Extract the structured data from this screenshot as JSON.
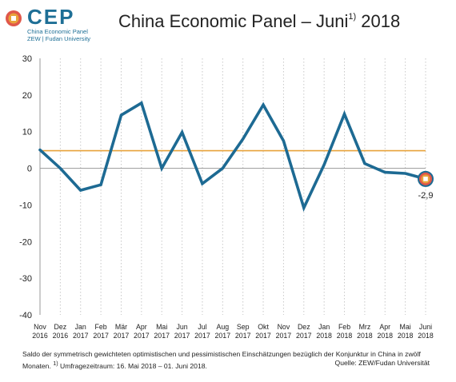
{
  "header": {
    "logo_word": "CEP",
    "logo_line1": "China Economic Panel",
    "logo_line2": "ZEW | Fudan University",
    "title_main": "China Economic Panel – Juni",
    "title_sup": "1)",
    "title_year": " 2018"
  },
  "footer": {
    "note_line1": "Saldo der symmetrisch gewichteten optimistischen und pessimistischen Einschätzungen bezüglich der Konjunktur in China in zwölf",
    "note_line2_a": "Monaten. ",
    "note_line2_sup": "1)",
    "note_line2_b": " Umfragezeitraum: 16. Mai 2018 – 01. Juni 2018.",
    "source": "Quelle: ZEW/Fudan Universität"
  },
  "colors": {
    "series": "#1d6a93",
    "mean": "#e8a23a",
    "marker_fill": "#e0574a",
    "marker_ring": "#e8a23a",
    "grid": "#c8c8c8"
  },
  "chart_data": {
    "type": "line",
    "ylim": [
      -40,
      30
    ],
    "yticks": [
      30,
      20,
      10,
      0,
      -10,
      -20,
      -30,
      -40
    ],
    "categories": [
      [
        "Nov",
        "2016"
      ],
      [
        "Dez",
        "2016"
      ],
      [
        "Jan",
        "2017"
      ],
      [
        "Feb",
        "2017"
      ],
      [
        "Mär",
        "2017"
      ],
      [
        "Apr",
        "2017"
      ],
      [
        "Mai",
        "2017"
      ],
      [
        "Jun",
        "2017"
      ],
      [
        "Jul",
        "2017"
      ],
      [
        "Aug",
        "2017"
      ],
      [
        "Sep",
        "2017"
      ],
      [
        "Okt",
        "2017"
      ],
      [
        "Nov",
        "2017"
      ],
      [
        "Dez",
        "2017"
      ],
      [
        "Jan",
        "2018"
      ],
      [
        "Feb",
        "2018"
      ],
      [
        "Mrz",
        "2018"
      ],
      [
        "Apr",
        "2018"
      ],
      [
        "Mai",
        "2018"
      ],
      [
        "Juni",
        "2018"
      ]
    ],
    "series": [
      {
        "values": [
          5,
          0,
          -6,
          -4.5,
          14.5,
          17.8,
          0,
          9.8,
          -4.2,
          0,
          8,
          17.3,
          7.5,
          -10.8,
          1,
          14.8,
          1.3,
          -1.1,
          -1.4,
          -2.9
        ]
      }
    ],
    "reference_line": 4.8,
    "last_value_label": "-2,9",
    "grid": "vertical dotted"
  }
}
